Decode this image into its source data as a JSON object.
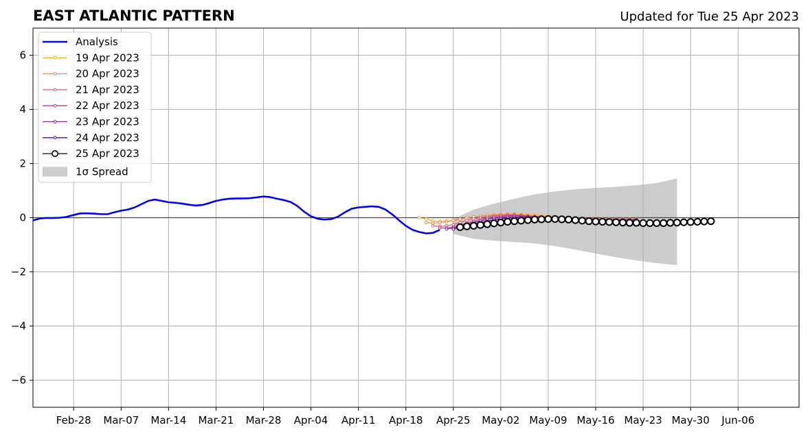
{
  "chart_data": {
    "type": "line",
    "title": "EAST ATLANTIC PATTERN",
    "subtitle": "Updated for Tue 25 Apr 2023",
    "xlabel": "",
    "ylabel": "",
    "x_start": "2023-02-22",
    "x_end": "2023-06-15",
    "xlim": [
      "2023-02-22",
      "2023-06-15"
    ],
    "ylim": [
      -7,
      7
    ],
    "yticks": [
      -6,
      -4,
      -2,
      0,
      2,
      4,
      6
    ],
    "ytick_labels": [
      "−6",
      "−4",
      "−2",
      "0",
      "2",
      "4",
      "6"
    ],
    "xticks": [
      "2023-02-28",
      "2023-03-07",
      "2023-03-14",
      "2023-03-21",
      "2023-03-28",
      "2023-04-04",
      "2023-04-11",
      "2023-04-18",
      "2023-04-25",
      "2023-05-02",
      "2023-05-09",
      "2023-05-16",
      "2023-05-23",
      "2023-05-30",
      "2023-06-06"
    ],
    "xtick_labels": [
      "Feb-28",
      "Mar-07",
      "Mar-14",
      "Mar-21",
      "Mar-28",
      "Apr-04",
      "Apr-11",
      "Apr-18",
      "Apr-25",
      "May-02",
      "May-09",
      "May-16",
      "May-23",
      "May-30",
      "Jun-06"
    ],
    "grid": true,
    "legend_position": "upper-left",
    "analysis": {
      "name": "Analysis",
      "color": "#0000ee",
      "x_start": "2023-02-22",
      "values": [
        -0.1,
        -0.03,
        -0.01,
        -0.01,
        0,
        0.03,
        0.1,
        0.16,
        0.16,
        0.15,
        0.13,
        0.13,
        0.2,
        0.26,
        0.3,
        0.38,
        0.5,
        0.62,
        0.67,
        0.62,
        0.57,
        0.55,
        0.52,
        0.48,
        0.45,
        0.47,
        0.54,
        0.62,
        0.67,
        0.7,
        0.71,
        0.71,
        0.72,
        0.75,
        0.78,
        0.76,
        0.7,
        0.65,
        0.58,
        0.43,
        0.22,
        0.05,
        -0.04,
        -0.07,
        -0.05,
        0.04,
        0.2,
        0.33,
        0.38,
        0.4,
        0.42,
        0.4,
        0.3,
        0.12,
        -0.1,
        -0.3,
        -0.45,
        -0.53,
        -0.58,
        -0.56,
        -0.45
      ]
    },
    "forecasts": [
      {
        "name": "19 Apr 2023",
        "color": "#f9b234",
        "x_start": "2023-04-20",
        "values": [
          0,
          -0.05,
          -0.12,
          -0.13,
          -0.12,
          -0.1,
          -0.05,
          0,
          0.03,
          0.05,
          0.07,
          0.1,
          0.12,
          0.13,
          0.14,
          0.13,
          0.12,
          0.1,
          0.08,
          0.06,
          0.04,
          0.02,
          0,
          -0.01,
          -0.02,
          -0.03,
          -0.03,
          -0.04,
          -0.04,
          -0.05,
          -0.05,
          -0.05,
          -0.05
        ]
      },
      {
        "name": "20 Apr 2023",
        "color": "#f08a4b",
        "x_start": "2023-04-21",
        "values": [
          -0.18,
          -0.2,
          -0.18,
          -0.15,
          -0.1,
          -0.05,
          0,
          0.03,
          0.06,
          0.09,
          0.11,
          0.12,
          0.13,
          0.12,
          0.1,
          0.08,
          0.06,
          0.04,
          0.02,
          0,
          -0.01,
          -0.02,
          -0.03,
          -0.03,
          -0.04,
          -0.04,
          -0.04,
          -0.05,
          -0.05,
          -0.05,
          -0.05,
          -0.05
        ]
      },
      {
        "name": "21 Apr 2023",
        "color": "#e05a6a",
        "x_start": "2023-04-22",
        "values": [
          -0.3,
          -0.32,
          -0.3,
          -0.25,
          -0.18,
          -0.1,
          -0.04,
          0,
          0.04,
          0.07,
          0.09,
          0.1,
          0.1,
          0.09,
          0.07,
          0.05,
          0.03,
          0.01,
          0,
          -0.02,
          -0.03,
          -0.04,
          -0.04,
          -0.05,
          -0.05,
          -0.05,
          -0.05,
          -0.06,
          -0.06,
          -0.06,
          -0.06
        ]
      },
      {
        "name": "22 Apr 2023",
        "color": "#b83c8c",
        "x_start": "2023-04-23",
        "values": [
          -0.38,
          -0.38,
          -0.34,
          -0.27,
          -0.2,
          -0.13,
          -0.06,
          -0.01,
          0.03,
          0.05,
          0.07,
          0.08,
          0.07,
          0.06,
          0.04,
          0.02,
          0,
          -0.02,
          -0.03,
          -0.04,
          -0.05,
          -0.05,
          -0.06,
          -0.06,
          -0.06,
          -0.07,
          -0.07,
          -0.07,
          -0.07,
          -0.07
        ]
      },
      {
        "name": "23 Apr 2023",
        "color": "#8a1fa0",
        "x_start": "2023-04-24",
        "values": [
          -0.42,
          -0.38,
          -0.32,
          -0.25,
          -0.18,
          -0.12,
          -0.06,
          -0.02,
          0.01,
          0.03,
          0.04,
          0.04,
          0.03,
          0.02,
          0,
          -0.02,
          -0.04,
          -0.05,
          -0.06,
          -0.07,
          -0.07,
          -0.08,
          -0.08,
          -0.08,
          -0.08,
          -0.09,
          -0.09,
          -0.09,
          -0.09
        ]
      },
      {
        "name": "24 Apr 2023",
        "color": "#4b0f8c",
        "x_start": "2023-04-25",
        "values": [
          -0.42,
          -0.36,
          -0.3,
          -0.24,
          -0.18,
          -0.13,
          -0.08,
          -0.04,
          -0.02,
          0,
          0,
          0,
          -0.01,
          -0.02,
          -0.04,
          -0.06,
          -0.08,
          -0.09,
          -0.1,
          -0.11,
          -0.12,
          -0.12,
          -0.13,
          -0.13,
          -0.13,
          -0.14,
          -0.14,
          -0.14
        ]
      },
      {
        "name": "25 Apr 2023",
        "color": "#000000",
        "x_start": "2023-04-26",
        "values": [
          -0.35,
          -0.32,
          -0.3,
          -0.27,
          -0.24,
          -0.21,
          -0.18,
          -0.15,
          -0.13,
          -0.11,
          -0.09,
          -0.07,
          -0.06,
          -0.05,
          -0.05,
          -0.06,
          -0.07,
          -0.09,
          -0.11,
          -0.13,
          -0.14,
          -0.15,
          -0.16,
          -0.17,
          -0.18,
          -0.19,
          -0.19,
          -0.2,
          -0.2,
          -0.2,
          -0.2,
          -0.19,
          -0.18,
          -0.17,
          -0.16,
          -0.15,
          -0.14,
          -0.13
        ]
      }
    ],
    "spread": {
      "name": "1σ Spread",
      "color": "#cccccc",
      "x": [
        "2023-04-25",
        "2023-04-28",
        "2023-05-01",
        "2023-05-04",
        "2023-05-07",
        "2023-05-10",
        "2023-05-13",
        "2023-05-16",
        "2023-05-19",
        "2023-05-22",
        "2023-05-25",
        "2023-05-28"
      ],
      "upper": [
        -0.05,
        0.3,
        0.52,
        0.7,
        0.86,
        0.97,
        1.05,
        1.1,
        1.14,
        1.2,
        1.28,
        1.45
      ],
      "lower": [
        -0.6,
        -0.78,
        -0.85,
        -0.9,
        -0.95,
        -1.05,
        -1.18,
        -1.32,
        -1.46,
        -1.58,
        -1.68,
        -1.75
      ]
    },
    "legend": [
      "Analysis",
      "19 Apr 2023",
      "20 Apr 2023",
      "21 Apr 2023",
      "22 Apr 2023",
      "23 Apr 2023",
      "24 Apr 2023",
      "25 Apr 2023",
      "1σ Spread"
    ]
  }
}
